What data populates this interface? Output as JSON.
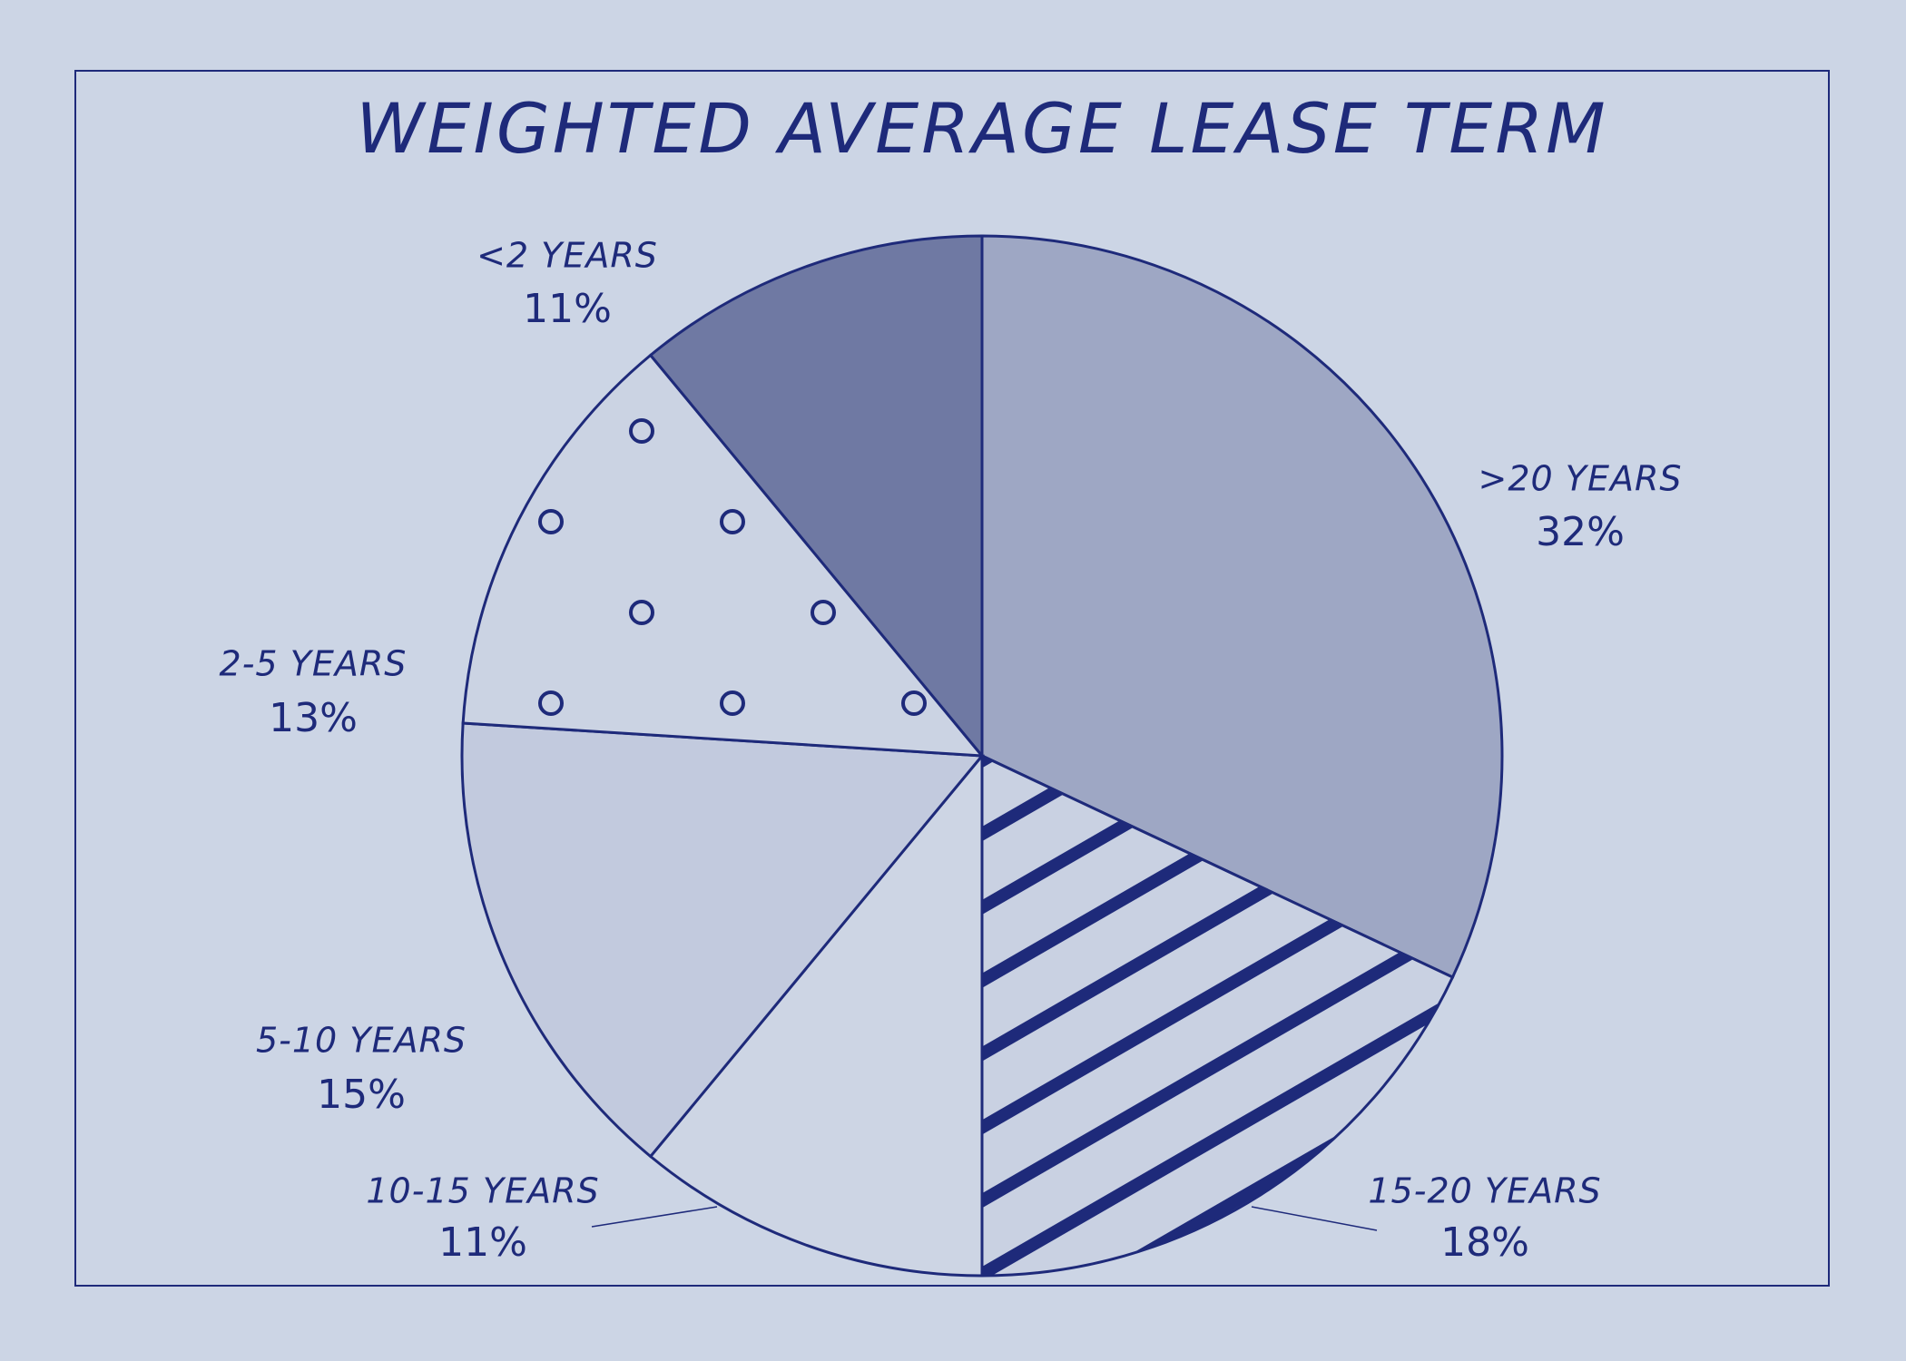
{
  "chart_data": {
    "type": "pie",
    "title": "WEIGHTED AVERAGE LEASE TERM",
    "categories": [
      ">20 YEARS",
      "15-20 YEARS",
      "10-15 YEARS",
      "5-10 YEARS",
      "2-5 YEARS",
      "<2 YEARS"
    ],
    "values": [
      32,
      18,
      11,
      15,
      13,
      11
    ],
    "value_labels": [
      "32%",
      "18%",
      "11%",
      "15%",
      "13%",
      "11%"
    ],
    "colors": [
      "#9ea7c4",
      "#c9d1e2",
      "#cdd5e4",
      "#c2cade",
      "#cbd3e3",
      "#6f79a3"
    ],
    "patterns": [
      "solid",
      "stripes",
      "solid",
      "solid",
      "dots",
      "solid"
    ]
  }
}
